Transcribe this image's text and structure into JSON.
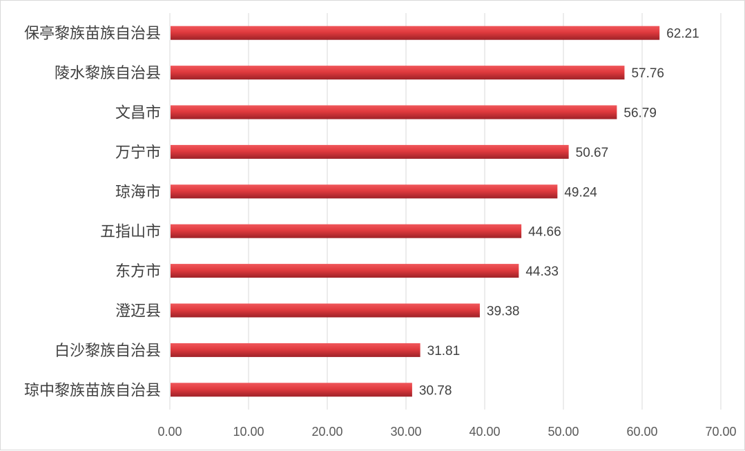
{
  "chart_data": {
    "type": "bar",
    "orientation": "horizontal",
    "categories": [
      "保亭黎族苗族自治县",
      "陵水黎族自治县",
      "文昌市",
      "万宁市",
      "琼海市",
      "五指山市",
      "东方市",
      "澄迈县",
      "白沙黎族自治县",
      "琼中黎族苗族自治县"
    ],
    "values": [
      62.21,
      57.76,
      56.79,
      50.67,
      49.24,
      44.66,
      44.33,
      39.38,
      31.81,
      30.78
    ],
    "value_labels": [
      "62.21",
      "57.76",
      "56.79",
      "50.67",
      "49.24",
      "44.66",
      "44.33",
      "39.38",
      "31.81",
      "30.78"
    ],
    "x_ticks": [
      "0.00",
      "10.00",
      "20.00",
      "30.00",
      "40.00",
      "50.00",
      "60.00",
      "70.00"
    ],
    "xlim": [
      0,
      70
    ],
    "grid": true,
    "legend": "none",
    "bar_color": "#e03a3e",
    "bar_dark_color": "#a8242a"
  }
}
